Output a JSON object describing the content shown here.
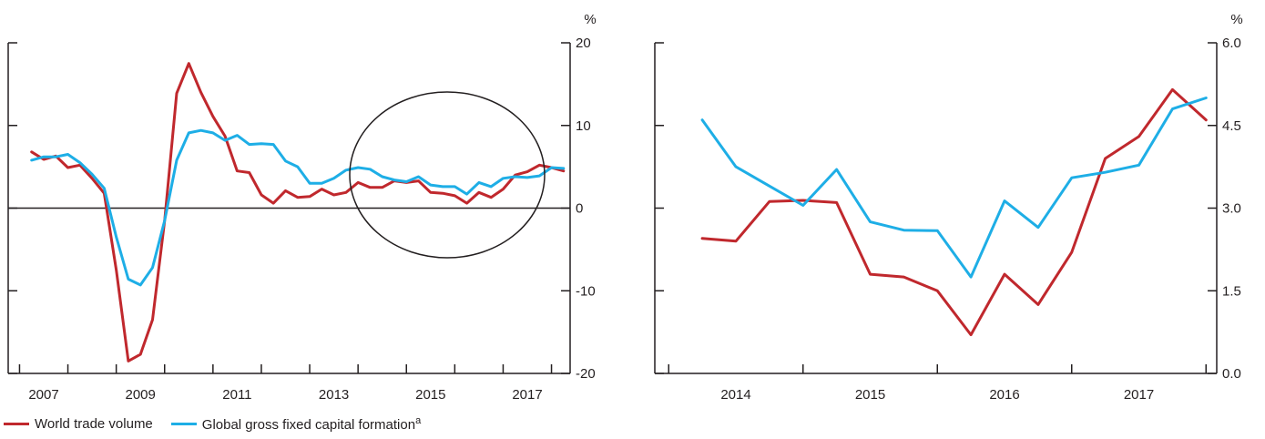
{
  "colors": {
    "world_trade": "#c0282d",
    "gross_fixed_capital": "#1eaee6",
    "axis": "#231f20"
  },
  "legend": {
    "items": [
      {
        "label": "World trade volume",
        "sup": "",
        "color": "#c0282d"
      },
      {
        "label": "Global gross fixed capital formation",
        "sup": "a",
        "color": "#1eaee6"
      }
    ]
  },
  "chart_data": [
    {
      "type": "line",
      "title": "",
      "xlabel": "",
      "ylabel": "%",
      "x_tick_labels": [
        "2007",
        "2009",
        "2011",
        "2013",
        "2015",
        "2017"
      ],
      "y_tick_labels": [
        "20",
        "10",
        "0",
        "-10",
        "-20"
      ],
      "ylim": [
        -20,
        20
      ],
      "xlim": [
        2006.5,
        2018.0
      ],
      "grid": false,
      "zero_line": true,
      "annotation": "circle-highlight",
      "series": [
        {
          "name": "World trade volume",
          "color": "#c0282d",
          "x": [
            2006.75,
            2007.0,
            2007.25,
            2007.5,
            2007.75,
            2008.0,
            2008.25,
            2008.5,
            2008.75,
            2009.0,
            2009.25,
            2009.5,
            2009.75,
            2010.0,
            2010.25,
            2010.5,
            2010.75,
            2011.0,
            2011.25,
            2011.5,
            2011.75,
            2012.0,
            2012.25,
            2012.5,
            2012.75,
            2013.0,
            2013.25,
            2013.5,
            2013.75,
            2014.0,
            2014.25,
            2014.5,
            2014.75,
            2015.0,
            2015.25,
            2015.5,
            2015.75,
            2016.0,
            2016.25,
            2016.5,
            2016.75,
            2017.0,
            2017.25,
            2017.5,
            2017.75
          ],
          "values": [
            6.8,
            5.9,
            6.3,
            4.9,
            5.2,
            3.6,
            1.8,
            -7.5,
            -18.5,
            -17.7,
            -13.5,
            -1.5,
            13.9,
            17.5,
            14.0,
            11.1,
            8.7,
            4.5,
            4.3,
            1.6,
            0.6,
            2.1,
            1.3,
            1.4,
            2.3,
            1.6,
            1.9,
            3.1,
            2.5,
            2.5,
            3.3,
            3.1,
            3.3,
            1.9,
            1.8,
            1.5,
            0.6,
            1.9,
            1.3,
            2.3,
            4.0,
            4.4,
            5.2,
            4.9,
            4.5
          ]
        },
        {
          "name": "Global gross fixed capital formation",
          "color": "#1eaee6",
          "x": [
            2006.75,
            2007.0,
            2007.25,
            2007.5,
            2007.75,
            2008.0,
            2008.25,
            2008.5,
            2008.75,
            2009.0,
            2009.25,
            2009.5,
            2009.75,
            2010.0,
            2010.25,
            2010.5,
            2010.75,
            2011.0,
            2011.25,
            2011.5,
            2011.75,
            2012.0,
            2012.25,
            2012.5,
            2012.75,
            2013.0,
            2013.25,
            2013.5,
            2013.75,
            2014.0,
            2014.25,
            2014.5,
            2014.75,
            2015.0,
            2015.25,
            2015.5,
            2015.75,
            2016.0,
            2016.25,
            2016.5,
            2016.75,
            2017.0,
            2017.25,
            2017.5,
            2017.75
          ],
          "values": [
            5.8,
            6.2,
            6.2,
            6.5,
            5.5,
            4.1,
            2.4,
            -3.5,
            -8.6,
            -9.3,
            -7.2,
            -1.5,
            5.8,
            9.1,
            9.4,
            9.1,
            8.2,
            8.8,
            7.7,
            7.8,
            7.7,
            5.7,
            5.0,
            3.0,
            3.0,
            3.6,
            4.6,
            4.9,
            4.7,
            3.8,
            3.4,
            3.2,
            3.8,
            2.8,
            2.6,
            2.6,
            1.7,
            3.1,
            2.6,
            3.6,
            3.8,
            3.7,
            3.9,
            4.9,
            4.8
          ]
        }
      ]
    },
    {
      "type": "line",
      "title": "",
      "xlabel": "",
      "ylabel": "%",
      "x_tick_labels": [
        "2014",
        "2015",
        "2016",
        "2017"
      ],
      "y_tick_labels": [
        "6.0",
        "4.5",
        "3.0",
        "1.5",
        "0.0"
      ],
      "ylim": [
        0,
        6
      ],
      "xlim": [
        2013.625,
        2017.875
      ],
      "grid": false,
      "series": [
        {
          "name": "World trade volume",
          "color": "#c0282d",
          "x": [
            2013.75,
            2014.0,
            2014.25,
            2014.5,
            2014.75,
            2015.0,
            2015.25,
            2015.5,
            2015.75,
            2016.0,
            2016.25,
            2016.5,
            2016.75,
            2017.0,
            2017.25,
            2017.5
          ],
          "values": [
            2.45,
            2.4,
            3.12,
            3.14,
            3.1,
            1.8,
            1.75,
            1.5,
            0.7,
            1.8,
            1.25,
            2.2,
            3.9,
            4.3,
            5.15,
            4.6
          ]
        },
        {
          "name": "Global gross fixed capital formation",
          "color": "#1eaee6",
          "x": [
            2013.75,
            2014.0,
            2014.25,
            2014.5,
            2014.75,
            2015.0,
            2015.25,
            2015.5,
            2015.75,
            2016.0,
            2016.25,
            2016.5,
            2016.75,
            2017.0,
            2017.25,
            2017.5
          ],
          "values": [
            4.6,
            3.75,
            3.4,
            3.05,
            3.7,
            2.75,
            2.6,
            2.59,
            1.75,
            3.13,
            2.65,
            3.55,
            3.65,
            3.78,
            4.8,
            5.0
          ]
        }
      ]
    }
  ]
}
